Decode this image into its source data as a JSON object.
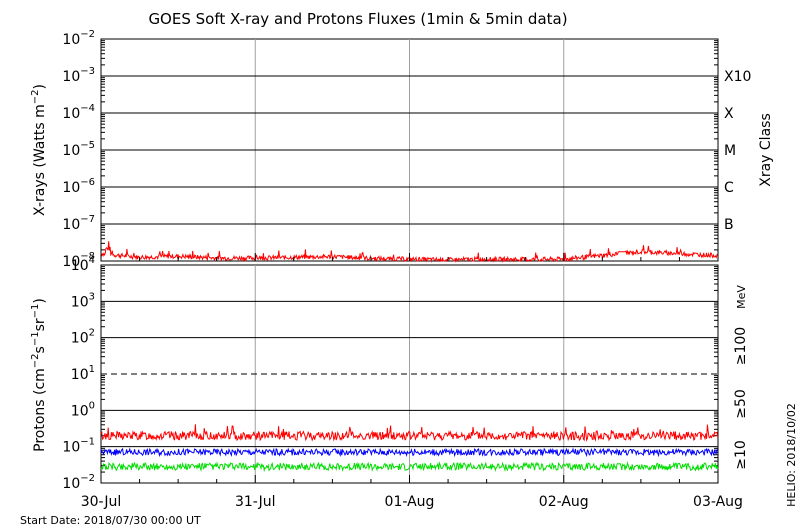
{
  "chart_data": [
    {
      "type": "line",
      "title": "GOES Soft X-ray and Protons Fluxes   (1min & 5min data)",
      "ylabel_main": "X-rays (Watts m",
      "ylabel_exp": "−2",
      "ylabel_close": ")",
      "y_scale": "log",
      "ylim": [
        1e-08,
        0.01
      ],
      "y_ticks": [
        {
          "base": "10",
          "exp": "−2"
        },
        {
          "base": "10",
          "exp": "−3"
        },
        {
          "base": "10",
          "exp": "−4"
        },
        {
          "base": "10",
          "exp": "−5"
        },
        {
          "base": "10",
          "exp": "−6"
        },
        {
          "base": "10",
          "exp": "−7"
        },
        {
          "base": "10",
          "exp": "−8"
        }
      ],
      "right_axis_title": "Xray Class",
      "right_labels": [
        "X10",
        "X",
        "M",
        "C",
        "B"
      ],
      "series_color": "#ff0000",
      "series": [
        {
          "x_days": [
            0.0,
            0.25,
            0.5,
            0.75,
            1.0,
            1.25,
            1.5,
            1.75,
            2.0,
            2.25,
            2.5,
            2.75,
            3.0,
            3.25,
            3.5,
            3.75,
            4.0
          ],
          "log_values": [
            -7.8,
            -7.9,
            -7.87,
            -7.92,
            -7.92,
            -7.9,
            -7.88,
            -7.93,
            -7.95,
            -7.97,
            -7.95,
            -7.96,
            -7.95,
            -7.85,
            -7.75,
            -7.8,
            -7.85
          ]
        }
      ]
    },
    {
      "type": "line",
      "ylabel_main": "Protons (cm",
      "ylabel_exp1": "−2",
      "ylabel_mid": "s",
      "ylabel_exp2": "−1",
      "ylabel_mid2": "sr",
      "ylabel_exp3": "−1",
      "ylabel_close": ")",
      "y_scale": "log",
      "ylim": [
        0.01,
        10000
      ],
      "y_ticks": [
        {
          "base": "10",
          "exp": "4"
        },
        {
          "base": "10",
          "exp": "3"
        },
        {
          "base": "10",
          "exp": "2"
        },
        {
          "base": "10",
          "exp": "1"
        },
        {
          "base": "10",
          "exp": "0"
        },
        {
          "base": "10",
          "exp": "−1"
        },
        {
          "base": "10",
          "exp": "−2"
        }
      ],
      "threshold_level": 10,
      "unit_label": "MeV",
      "energy_labels": [
        {
          "text": "≥100",
          "color": "#00dd00"
        },
        {
          "text": "≥50",
          "color": "#0000ff"
        },
        {
          "text": "≥10",
          "color": "#ff0000"
        }
      ],
      "series": [
        {
          "name": "≥10",
          "color": "#ff0000",
          "log_mean": -0.7
        },
        {
          "name": "≥50",
          "color": "#0000ff",
          "log_mean": -1.15
        },
        {
          "name": "≥100",
          "color": "#00dd00",
          "log_mean": -1.55
        }
      ]
    }
  ],
  "x_axis": {
    "categories": [
      "30-Jul",
      "31-Jul",
      "01-Aug",
      "02-Aug",
      "03-Aug"
    ]
  },
  "footer": {
    "start_date": "Start Date: 2018/07/30 00:00 UT",
    "credit": "HELIO: 2018/10/02"
  }
}
